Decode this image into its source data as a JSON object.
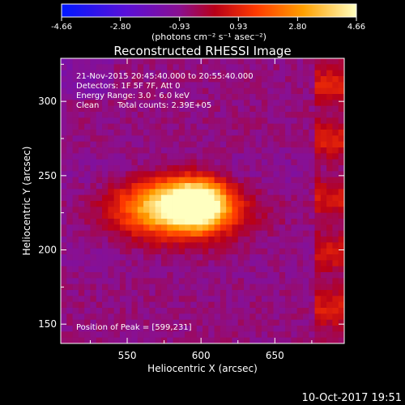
{
  "colorbar": {
    "ticks": [
      "-4.66",
      "-2.80",
      "-0.93",
      "0.93",
      "2.80",
      "4.66"
    ],
    "tick_values": [
      -4.66,
      -2.8,
      -0.93,
      0.93,
      2.8,
      4.66
    ],
    "range": [
      -4.66,
      4.66
    ],
    "units": "(photons cm⁻² s⁻¹ asec⁻²)"
  },
  "chart_data": {
    "type": "heatmap",
    "title": "Reconstructed RHESSI Image",
    "xlabel": "Heliocentric X (arcsec)",
    "ylabel": "Heliocentric Y (arcsec)",
    "xlim": [
      505,
      697
    ],
    "ylim": [
      137,
      329
    ],
    "xticks": [
      "550",
      "600",
      "650"
    ],
    "xtick_values": [
      550,
      600,
      650
    ],
    "yticks": [
      "150",
      "200",
      "250",
      "300"
    ],
    "ytick_values": [
      150,
      200,
      250,
      300
    ],
    "peak": [
      599,
      231
    ],
    "annotations": {
      "time": "21-Nov-2015 20:45:40.000 to 20:55:40.000",
      "detectors": "Detectors: 1F 5F 7F, Att 0",
      "energy": "Energy Range: 3.0 - 6.0 keV",
      "algorithm": "Clean",
      "counts": "Total counts: 2.39E+05",
      "peak_label": "Position of Peak = [599,231]"
    }
  },
  "footer": {
    "timestamp": "10-Oct-2017 19:51"
  },
  "colors": {
    "background": "#000000",
    "text": "#ffffff"
  }
}
